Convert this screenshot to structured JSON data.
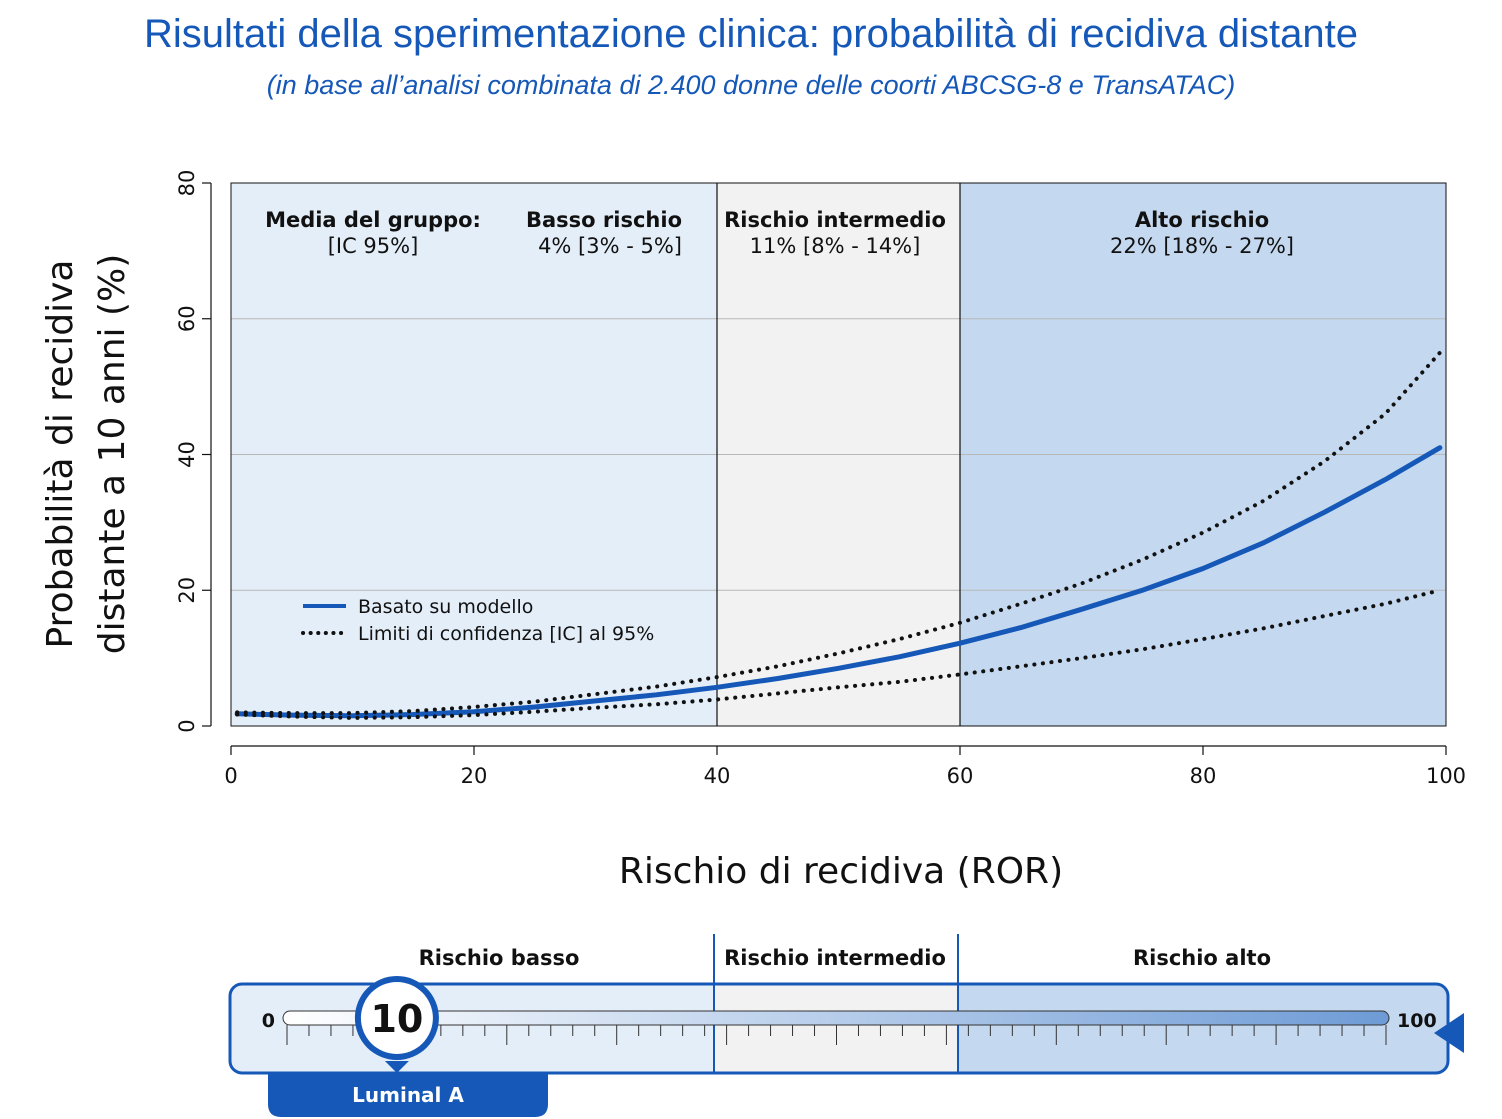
{
  "header": {
    "title": "Risultati della sperimentazione clinica: probabilità di recidiva distante",
    "subtitle": "(in base all’analisi combinata di 2.400 donne delle coorti ABCSG-8 e TransATAC)"
  },
  "chart_data": {
    "type": "line",
    "xlabel": "Rischio di recidiva (ROR)",
    "ylabel_lines": [
      "Probabilità di recidiva",
      "distante a 10 anni (%)"
    ],
    "xlim": [
      0,
      100
    ],
    "ylim": [
      0,
      80
    ],
    "x_ticks": [
      "0",
      "20",
      "40",
      "60",
      "80",
      "100"
    ],
    "y_ticks": [
      "0",
      "20",
      "40",
      "60",
      "80"
    ],
    "grid": true,
    "legend_position": "lower-left",
    "zones": [
      {
        "from": 0,
        "to": 40,
        "color": "#e4eef8"
      },
      {
        "from": 40,
        "to": 60,
        "color": "#f2f2f2"
      },
      {
        "from": 60,
        "to": 100,
        "color": "#c4d8ef"
      }
    ],
    "annotations": {
      "group_heading": "Media del gruppo:",
      "group_subheading": "[IC 95%]",
      "low_name": "Basso rischio",
      "low_value": "4% [3% - 5%]",
      "mid_name": "Rischio intermedio",
      "mid_value": "11% [8% - 14%]",
      "high_name": "Alto rischio",
      "high_value": "22% [18% - 27%]"
    },
    "series": [
      {
        "name": "Basato su modello",
        "style": "solid",
        "color": "#1558b8",
        "x": [
          0.5,
          5,
          10,
          15,
          20,
          25,
          30,
          35,
          40,
          45,
          50,
          55,
          60,
          65,
          70,
          75,
          80,
          85,
          90,
          95,
          99.5
        ],
        "values": [
          1.8,
          1.6,
          1.5,
          1.7,
          2.1,
          2.8,
          3.7,
          4.6,
          5.7,
          7.0,
          8.5,
          10.2,
          12.2,
          14.5,
          17.2,
          20.0,
          23.2,
          27.0,
          31.5,
          36.3,
          41
        ]
      },
      {
        "name": "Limiti di confidenza [IC] al 95%",
        "style": "dotted",
        "color": "#111111",
        "x": [
          0.5,
          5,
          10,
          15,
          20,
          25,
          30,
          35,
          40,
          45,
          50,
          55,
          60,
          65,
          70,
          75,
          80,
          85,
          90,
          95,
          99.5
        ],
        "values": [
          2.0,
          1.9,
          1.9,
          2.2,
          2.8,
          3.6,
          4.7,
          5.8,
          7.2,
          8.8,
          10.7,
          12.8,
          15.2,
          18.0,
          21.0,
          24.5,
          28.5,
          33.2,
          39.0,
          46.0,
          55
        ]
      },
      {
        "name": "",
        "style": "dotted",
        "color": "#111111",
        "x": [
          0.5,
          5,
          10,
          15,
          20,
          25,
          30,
          35,
          40,
          45,
          50,
          55,
          60,
          65,
          70,
          75,
          80,
          85,
          90,
          95,
          99.5
        ],
        "values": [
          1.7,
          1.4,
          1.2,
          1.3,
          1.6,
          2.1,
          2.7,
          3.2,
          3.9,
          4.8,
          5.7,
          6.5,
          7.6,
          8.8,
          10.0,
          11.3,
          12.8,
          14.4,
          16.2,
          18.0,
          20
        ]
      }
    ]
  },
  "risk_scale": {
    "zone_labels": [
      "Rischio basso",
      "Rischio intermedio",
      "Rischio alto"
    ],
    "min_label": "0",
    "max_label": "100",
    "score": "10",
    "score_value": 10,
    "subtype": "Luminal A",
    "colors": {
      "accent": "#1558b8",
      "low": "#e4eef8",
      "mid": "#f2f2f2",
      "high": "#c4d8ef"
    }
  }
}
